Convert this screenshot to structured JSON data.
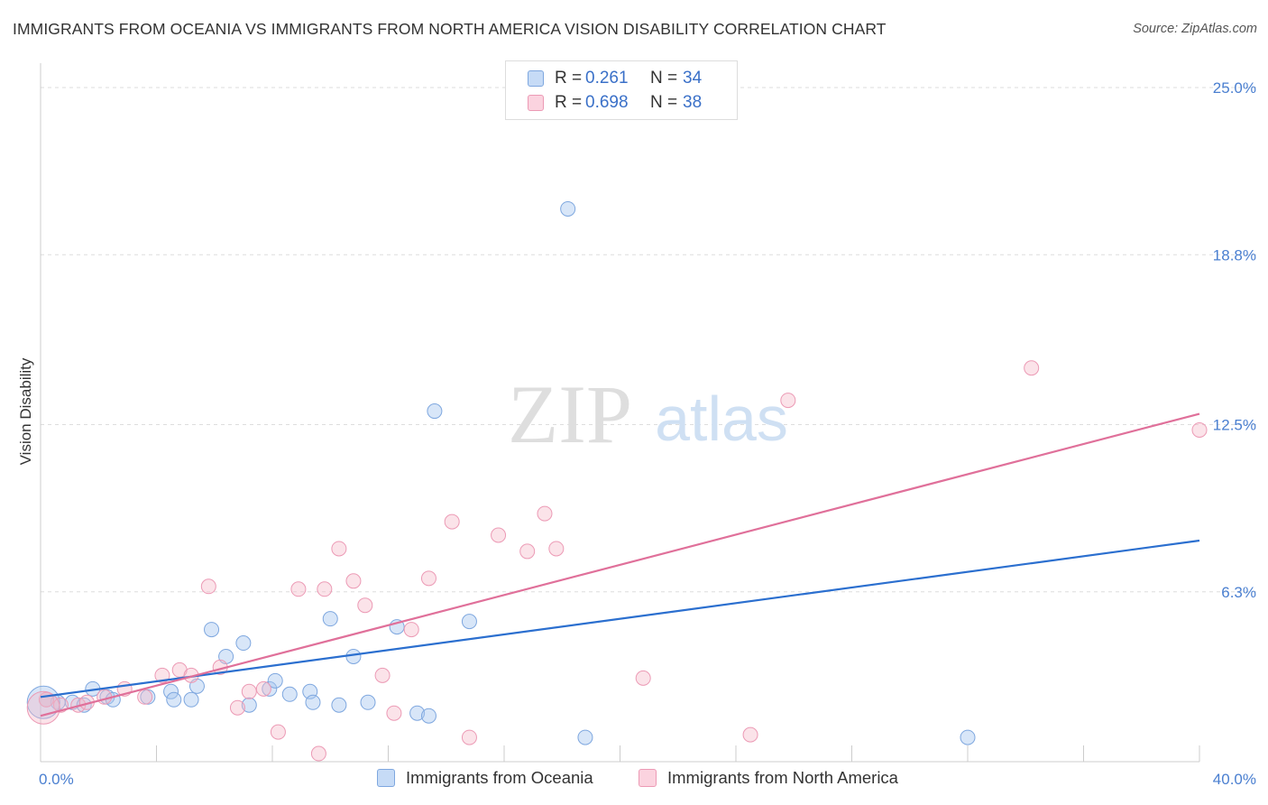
{
  "title": "IMMIGRANTS FROM OCEANIA VS IMMIGRANTS FROM NORTH AMERICA VISION DISABILITY CORRELATION CHART",
  "source": "Source: ZipAtlas.com",
  "watermark": {
    "zip": "ZIP",
    "atlas": "atlas"
  },
  "legend": {
    "rows": [
      {
        "r_label": "R =",
        "r_value": "0.261",
        "n_label": "N =",
        "n_value": "34",
        "color": "#a9c8f0"
      },
      {
        "r_label": "R =",
        "r_value": "0.698",
        "n_label": "N =",
        "n_value": "38",
        "color": "#f5b8c9"
      }
    ]
  },
  "bottom_legend": [
    {
      "label": "Immigrants from Oceania",
      "color": "#a9c8f0"
    },
    {
      "label": "Immigrants from North America",
      "color": "#f5b8c9"
    }
  ],
  "chart_data": {
    "type": "scatter",
    "title": "IMMIGRANTS FROM OCEANIA VS IMMIGRANTS FROM NORTH AMERICA VISION DISABILITY CORRELATION CHART",
    "xlabel": "",
    "ylabel": "Vision Disability",
    "xlim": [
      0,
      40
    ],
    "ylim": [
      0,
      25.5
    ],
    "x_tick_labels": [
      "0.0%",
      "40.0%"
    ],
    "y_ticks": [
      6.3,
      12.5,
      18.8,
      25.0
    ],
    "y_tick_labels": [
      "6.3%",
      "12.5%",
      "18.8%",
      "25.0%"
    ],
    "grid": "horizontal dashed",
    "legend_position": "top-center",
    "series": [
      {
        "name": "Immigrants from Oceania",
        "color": "#a9c8f0",
        "line_color": "#2b6fcf",
        "trend": {
          "x": [
            0,
            40
          ],
          "y": [
            2.4,
            8.2
          ]
        },
        "points": [
          {
            "x": 0.2,
            "y": 2.3
          },
          {
            "x": 0.6,
            "y": 2.2
          },
          {
            "x": 1.1,
            "y": 2.2
          },
          {
            "x": 1.5,
            "y": 2.1
          },
          {
            "x": 1.8,
            "y": 2.7
          },
          {
            "x": 2.3,
            "y": 2.4
          },
          {
            "x": 2.5,
            "y": 2.3
          },
          {
            "x": 3.7,
            "y": 2.4
          },
          {
            "x": 4.5,
            "y": 2.6
          },
          {
            "x": 4.6,
            "y": 2.3
          },
          {
            "x": 5.2,
            "y": 2.3
          },
          {
            "x": 5.4,
            "y": 2.8
          },
          {
            "x": 5.9,
            "y": 4.9
          },
          {
            "x": 6.4,
            "y": 3.9
          },
          {
            "x": 7.0,
            "y": 4.4
          },
          {
            "x": 7.2,
            "y": 2.1
          },
          {
            "x": 7.9,
            "y": 2.7
          },
          {
            "x": 8.1,
            "y": 3.0
          },
          {
            "x": 8.6,
            "y": 2.5
          },
          {
            "x": 9.3,
            "y": 2.6
          },
          {
            "x": 9.4,
            "y": 2.2
          },
          {
            "x": 10.0,
            "y": 5.3
          },
          {
            "x": 10.3,
            "y": 2.1
          },
          {
            "x": 10.8,
            "y": 3.9
          },
          {
            "x": 11.3,
            "y": 2.2
          },
          {
            "x": 12.3,
            "y": 5.0
          },
          {
            "x": 13.0,
            "y": 1.8
          },
          {
            "x": 13.4,
            "y": 1.7
          },
          {
            "x": 13.6,
            "y": 13.0
          },
          {
            "x": 14.8,
            "y": 5.2
          },
          {
            "x": 18.2,
            "y": 20.5
          },
          {
            "x": 18.8,
            "y": 0.9
          },
          {
            "x": 32.0,
            "y": 0.9
          },
          {
            "x": 0.1,
            "y": 2.2
          }
        ]
      },
      {
        "name": "Immigrants from North America",
        "color": "#f5b8c9",
        "line_color": "#e0709a",
        "trend": {
          "x": [
            0,
            40
          ],
          "y": [
            1.7,
            12.9
          ]
        },
        "points": [
          {
            "x": 0.2,
            "y": 2.3
          },
          {
            "x": 0.7,
            "y": 2.1
          },
          {
            "x": 1.3,
            "y": 2.1
          },
          {
            "x": 1.6,
            "y": 2.2
          },
          {
            "x": 2.2,
            "y": 2.4
          },
          {
            "x": 2.9,
            "y": 2.7
          },
          {
            "x": 3.6,
            "y": 2.4
          },
          {
            "x": 4.2,
            "y": 3.2
          },
          {
            "x": 4.8,
            "y": 3.4
          },
          {
            "x": 5.2,
            "y": 3.2
          },
          {
            "x": 5.8,
            "y": 6.5
          },
          {
            "x": 6.2,
            "y": 3.5
          },
          {
            "x": 6.8,
            "y": 2.0
          },
          {
            "x": 7.2,
            "y": 2.6
          },
          {
            "x": 7.7,
            "y": 2.7
          },
          {
            "x": 8.2,
            "y": 1.1
          },
          {
            "x": 8.9,
            "y": 6.4
          },
          {
            "x": 9.6,
            "y": 0.3
          },
          {
            "x": 9.8,
            "y": 6.4
          },
          {
            "x": 10.3,
            "y": 7.9
          },
          {
            "x": 10.8,
            "y": 6.7
          },
          {
            "x": 11.2,
            "y": 5.8
          },
          {
            "x": 11.8,
            "y": 3.2
          },
          {
            "x": 12.2,
            "y": 1.8
          },
          {
            "x": 12.8,
            "y": 4.9
          },
          {
            "x": 13.4,
            "y": 6.8
          },
          {
            "x": 14.2,
            "y": 8.9
          },
          {
            "x": 14.8,
            "y": 0.9
          },
          {
            "x": 15.8,
            "y": 8.4
          },
          {
            "x": 16.8,
            "y": 7.8
          },
          {
            "x": 17.4,
            "y": 9.2
          },
          {
            "x": 17.8,
            "y": 7.9
          },
          {
            "x": 20.8,
            "y": 3.1
          },
          {
            "x": 24.5,
            "y": 1.0
          },
          {
            "x": 25.8,
            "y": 13.4
          },
          {
            "x": 34.2,
            "y": 14.6
          },
          {
            "x": 40.0,
            "y": 12.3
          },
          {
            "x": 0.1,
            "y": 2.0
          }
        ]
      }
    ]
  }
}
